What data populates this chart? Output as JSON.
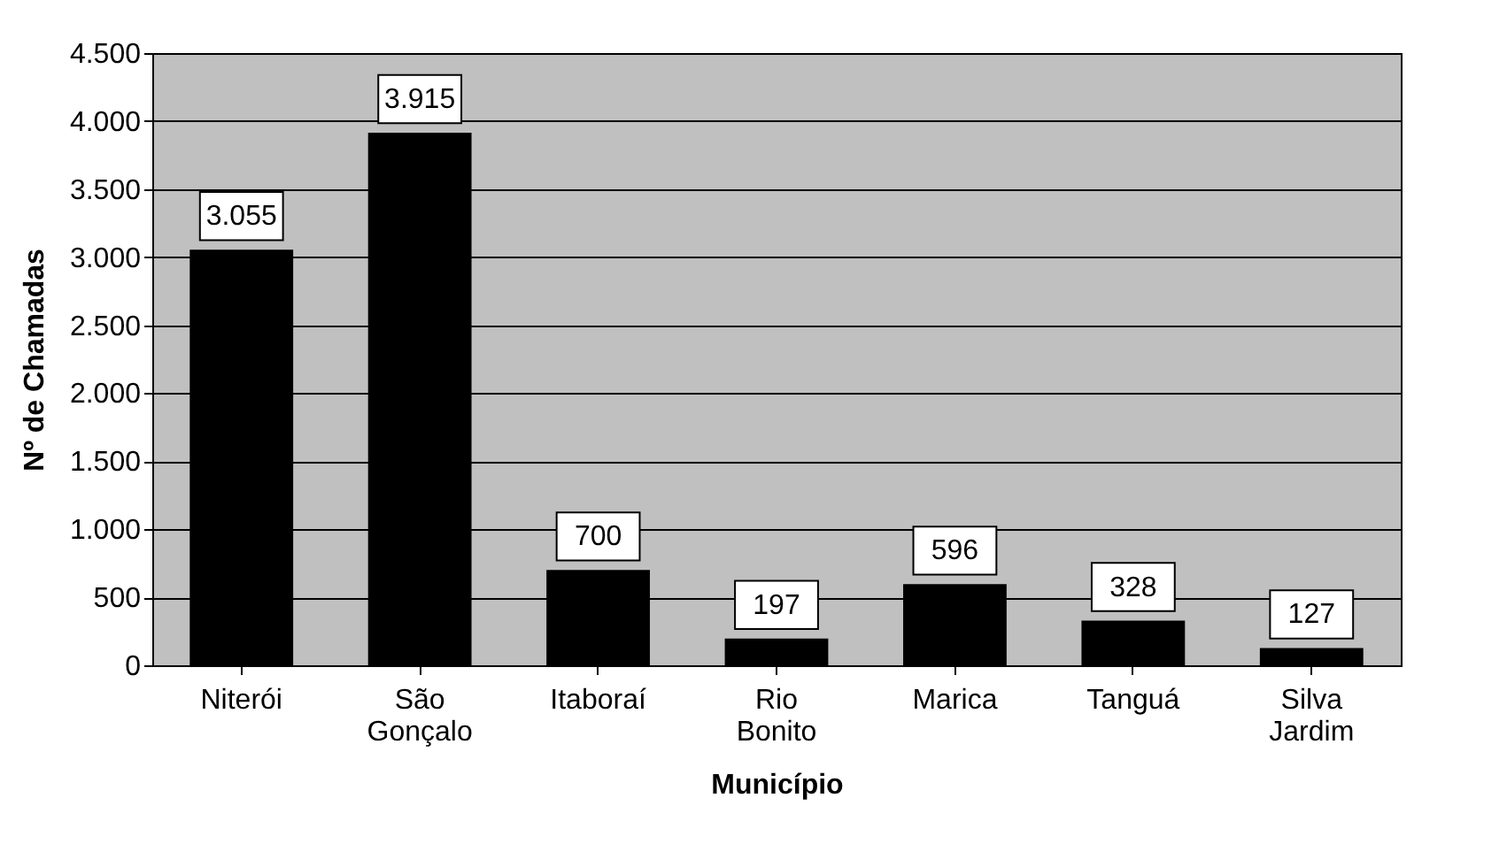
{
  "chart_data": {
    "type": "bar",
    "xlabel": "Município",
    "ylabel": "Nº de Chamadas",
    "categories": [
      "Niterói",
      "São Gonçalo",
      "Itaboraí",
      "Rio Bonito",
      "Marica",
      "Tanguá",
      "Silva Jardim"
    ],
    "values": [
      3055,
      3915,
      700,
      197,
      596,
      328,
      127
    ],
    "value_labels": [
      "3.055",
      "3.915",
      "700",
      "197",
      "596",
      "328",
      "127"
    ],
    "color": "#000000",
    "ylim": [
      0,
      4500
    ],
    "yticks": [
      {
        "value": 0,
        "label": "0"
      },
      {
        "value": 500,
        "label": "500"
      },
      {
        "value": 1000,
        "label": "1.000"
      },
      {
        "value": 1500,
        "label": "1.500"
      },
      {
        "value": 2000,
        "label": "2.000"
      },
      {
        "value": 2500,
        "label": "2.500"
      },
      {
        "value": 3000,
        "label": "3.000"
      },
      {
        "value": 3500,
        "label": "3.500"
      },
      {
        "value": 4000,
        "label": "4.000"
      },
      {
        "value": 4500,
        "label": "4.500"
      }
    ],
    "grid": "y"
  }
}
